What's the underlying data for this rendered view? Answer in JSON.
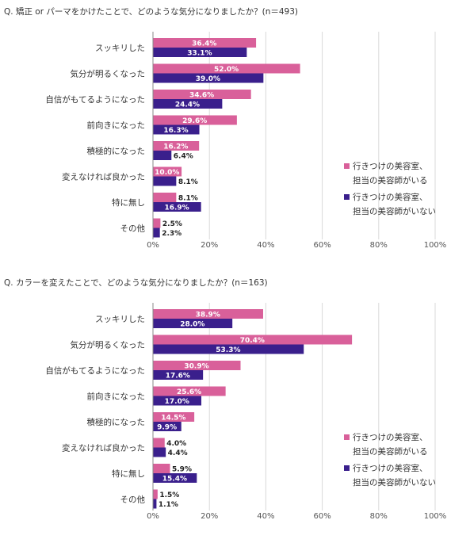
{
  "colors": {
    "pink": "#D9609A",
    "navy": "#3A1F8C"
  },
  "chart_data": [
    {
      "type": "bar",
      "orientation": "horizontal",
      "title": "Q. 矯正 or パーマをかけたことで、どのような気分になりましたか？(n＝493)",
      "categories": [
        "スッキリした",
        "気分が明るくなった",
        "自信がもてるようになった",
        "前向きになった",
        "積極的になった",
        "変えなければ良かった",
        "特に無し",
        "その他"
      ],
      "series": [
        {
          "name": "行きつけの美容室、担当の美容師がいる",
          "values": [
            36.4,
            52.0,
            34.6,
            29.6,
            16.2,
            10.0,
            8.1,
            2.5
          ]
        },
        {
          "name": "行きつけの美容室、担当の美容師がいない",
          "values": [
            33.1,
            39.0,
            24.4,
            16.3,
            6.4,
            8.1,
            16.9,
            2.3
          ]
        }
      ],
      "xlim": [
        0,
        100
      ],
      "xticks": [
        "0%",
        "20%",
        "40%",
        "60%",
        "80%",
        "100%"
      ],
      "grid": true,
      "legend_position": "right",
      "legend_lines": [
        [
          "行きつけの美容室、",
          "担当の美容師がいる"
        ],
        [
          "行きつけの美容室、",
          "担当の美容師がいない"
        ]
      ]
    },
    {
      "type": "bar",
      "orientation": "horizontal",
      "title": "Q. カラーを変えたことで、どのような気分になりましたか？(n＝163)",
      "categories": [
        "スッキリした",
        "気分が明るくなった",
        "自信がもてるようになった",
        "前向きになった",
        "積極的になった",
        "変えなければ良かった",
        "特に無し",
        "その他"
      ],
      "series": [
        {
          "name": "行きつけの美容室、担当の美容師がいる",
          "values": [
            38.9,
            70.4,
            30.9,
            25.6,
            14.5,
            4.0,
            5.9,
            1.5
          ]
        },
        {
          "name": "行きつけの美容室、担当の美容師がいない",
          "values": [
            28.0,
            53.3,
            17.6,
            17.0,
            9.9,
            4.4,
            15.4,
            1.1
          ]
        }
      ],
      "xlim": [
        0,
        100
      ],
      "xticks": [
        "0%",
        "20%",
        "40%",
        "60%",
        "80%",
        "100%"
      ],
      "grid": true,
      "legend_position": "right",
      "legend_lines": [
        [
          "行きつけの美容室、",
          "担当の美容師がいる"
        ],
        [
          "行きつけの美容室、",
          "担当の美容師がいない"
        ]
      ]
    }
  ]
}
